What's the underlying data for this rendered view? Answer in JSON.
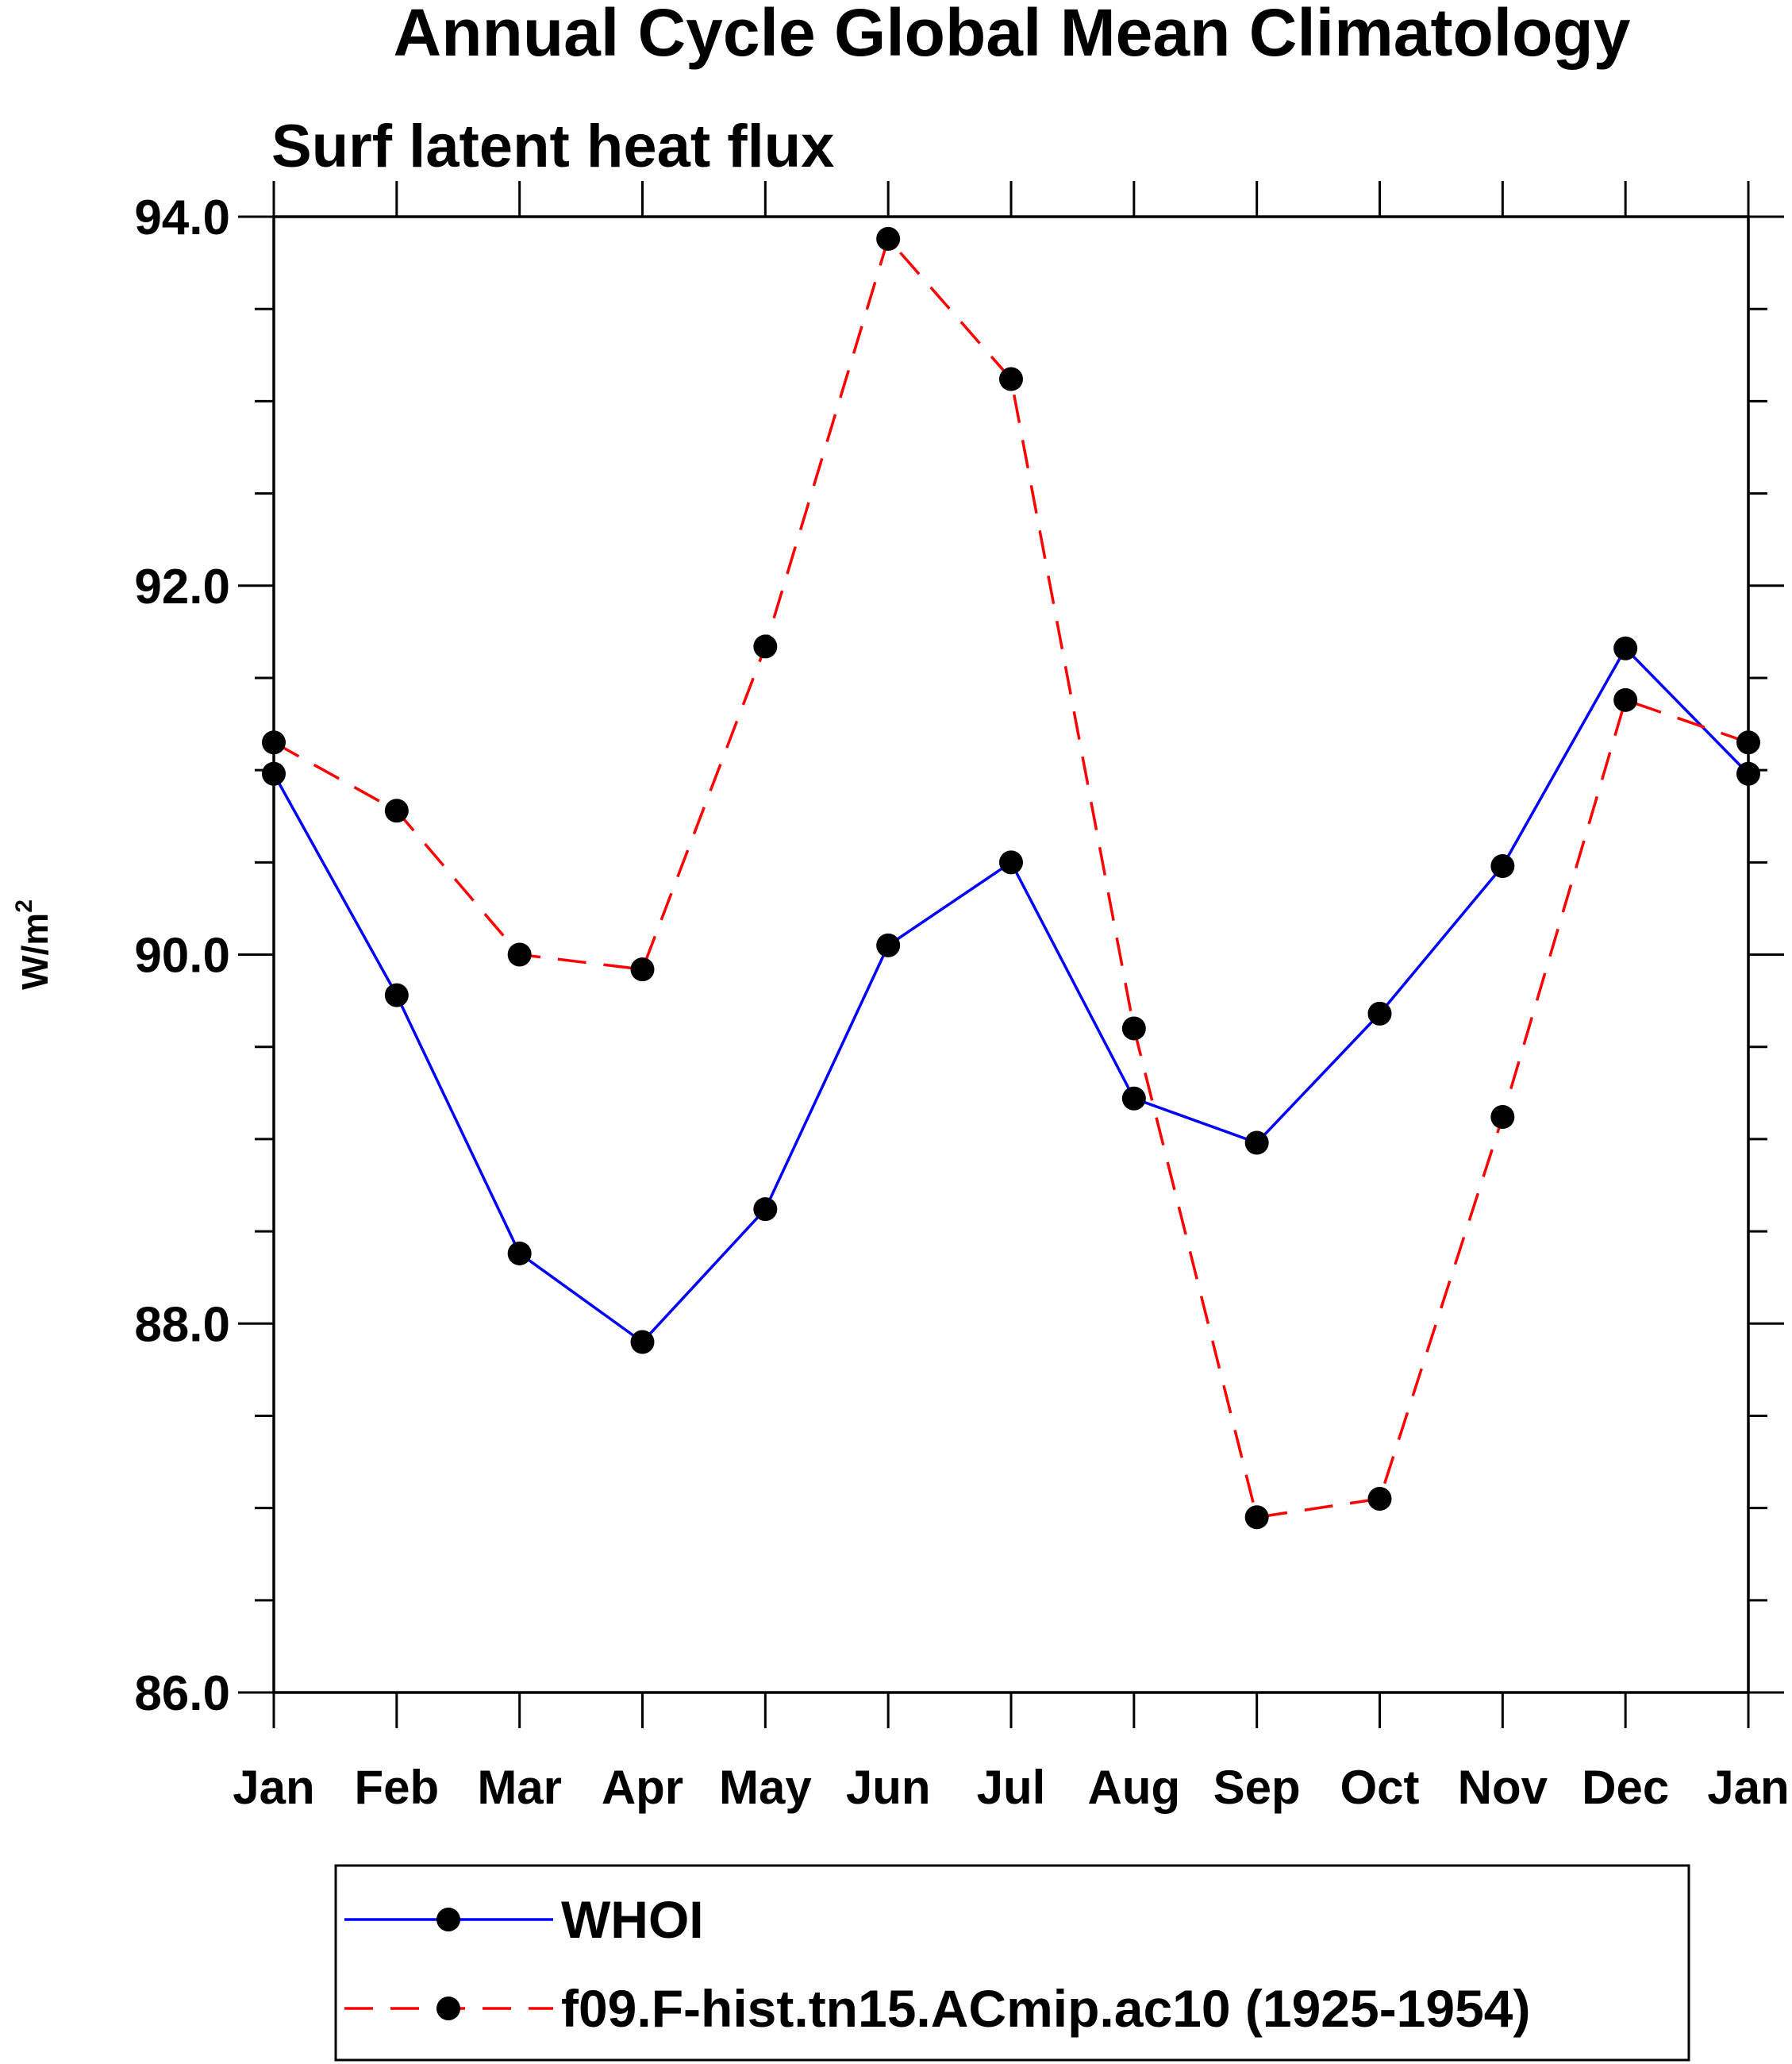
{
  "chart_data": {
    "type": "line",
    "title": "Annual Cycle Global Mean Climatology",
    "subtitle": "Surf latent heat flux",
    "ylabel": "W/m",
    "ylabel_superscript": "2",
    "xlabel": "",
    "categories": [
      "Jan",
      "Feb",
      "Mar",
      "Apr",
      "May",
      "Jun",
      "Jul",
      "Aug",
      "Sep",
      "Oct",
      "Nov",
      "Dec",
      "Jan"
    ],
    "ylim": [
      86.0,
      94.0
    ],
    "yticks": [
      "86.0",
      "88.0",
      "90.0",
      "92.0",
      "94.0"
    ],
    "ytick_values": [
      86.0,
      88.0,
      90.0,
      92.0,
      94.0
    ],
    "grid": false,
    "legend_position": "bottom",
    "series": [
      {
        "name": "WHOI",
        "color": "#0000ff",
        "dash": "solid",
        "marker": "circle",
        "values": [
          90.98,
          89.78,
          88.38,
          87.9,
          88.62,
          90.05,
          90.5,
          89.22,
          88.98,
          89.68,
          90.48,
          91.66,
          90.98
        ]
      },
      {
        "name": "f09.F-hist.tn15.ACmip.ac10 (1925-1954)",
        "color": "#ff0000",
        "dash": "dashed",
        "marker": "circle",
        "values": [
          91.15,
          90.78,
          90.0,
          89.92,
          91.67,
          93.88,
          93.12,
          89.6,
          86.95,
          87.05,
          89.12,
          91.38,
          91.15
        ]
      }
    ]
  }
}
